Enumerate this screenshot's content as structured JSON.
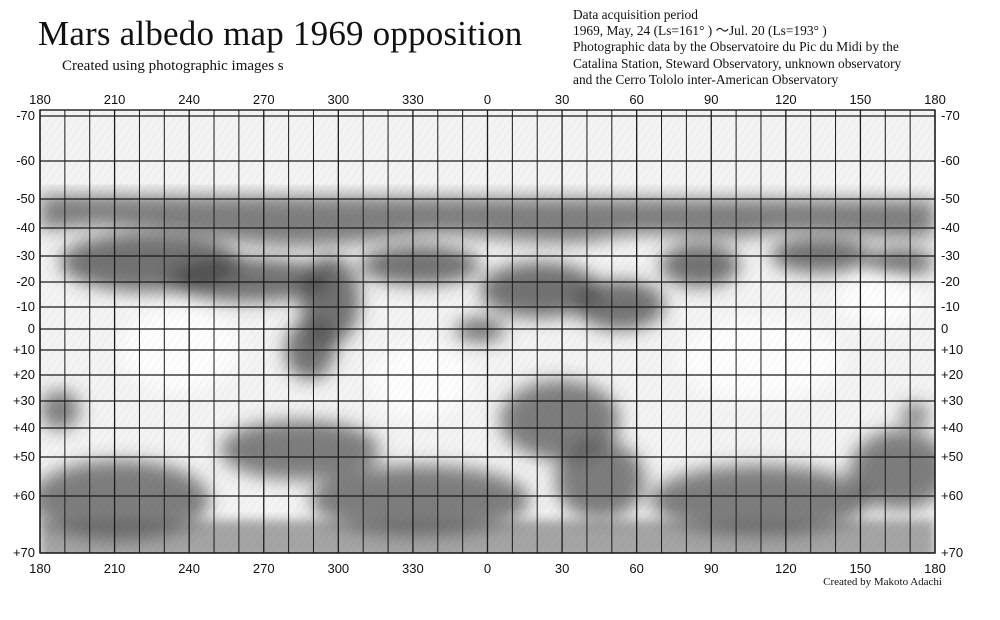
{
  "title": "Mars albedo map 1969  opposition",
  "subtitle": "Created using photographic images s",
  "info_lines": [
    "Data acquisition period",
    "1969, May, 24 (Ls=161°  ) ～Jul. 20 (Ls=193°  )",
    "Photographic data by the Observatoire du Pic du Midi by the",
    "Catalina Station, Steward Observatory, unknown observatory",
    "and the Cerro Tololo inter-American Observatory"
  ],
  "credit": "Created by Makoto Adachi",
  "longitude_labels": [
    "180",
    "210",
    "240",
    "270",
    "300",
    "330",
    "0",
    "30",
    "60",
    "90",
    "120",
    "150",
    "180"
  ],
  "latitude_labels": [
    {
      "label": "-70",
      "lat": -70
    },
    {
      "label": "-60",
      "lat": -60
    },
    {
      "label": "-50",
      "lat": -50
    },
    {
      "label": "-40",
      "lat": -40
    },
    {
      "label": "-30",
      "lat": -30
    },
    {
      "label": "-20",
      "lat": -20
    },
    {
      "label": "-10",
      "lat": -10
    },
    {
      "label": "0",
      "lat": 0
    },
    {
      "label": "+10",
      "lat": 10
    },
    {
      "label": "+20",
      "lat": 20
    },
    {
      "label": "+30",
      "lat": 30
    },
    {
      "label": "+40",
      "lat": 40
    },
    {
      "label": "+50",
      "lat": 50
    },
    {
      "label": "+60",
      "lat": 60
    },
    {
      "label": "+70",
      "lat": 70
    }
  ],
  "colors": {
    "paper": "#f4f4f4",
    "grid": "#1a1a1a",
    "dark_shading": "#4a4a4a"
  }
}
